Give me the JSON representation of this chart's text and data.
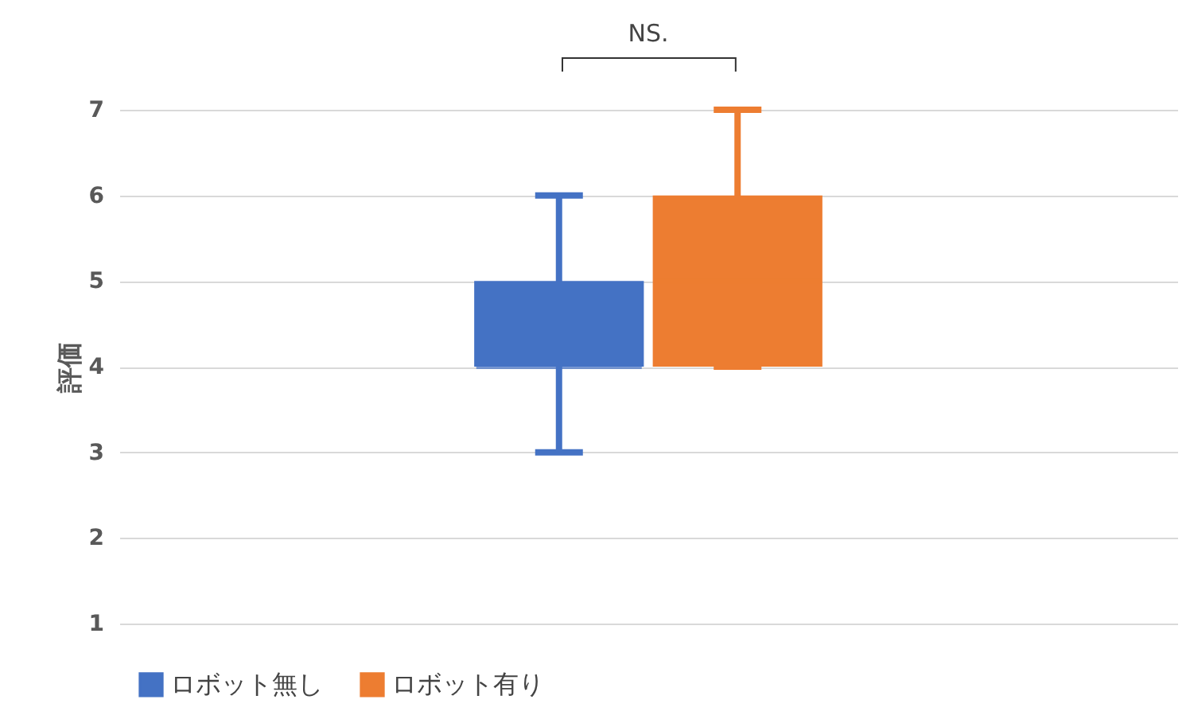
{
  "chart_data": {
    "type": "box",
    "categories": [
      null
    ],
    "ylabel": "評価",
    "ylim": [
      1,
      7
    ],
    "yticks": [
      1,
      2,
      3,
      4,
      5,
      6,
      7
    ],
    "grid": "y",
    "legend": "bottom",
    "annotations": [
      "NS."
    ],
    "series": [
      {
        "name": "ロボット無し",
        "color": "#4472c4",
        "boxes": [
          {
            "low": 3,
            "q1": 4,
            "median": 4,
            "q3": 5,
            "high": 6
          }
        ]
      },
      {
        "name": "ロボット有り",
        "color": "#ed7d31",
        "boxes": [
          {
            "low": 4,
            "q1": 4,
            "median": 5,
            "q3": 6,
            "high": 7
          }
        ]
      }
    ]
  }
}
